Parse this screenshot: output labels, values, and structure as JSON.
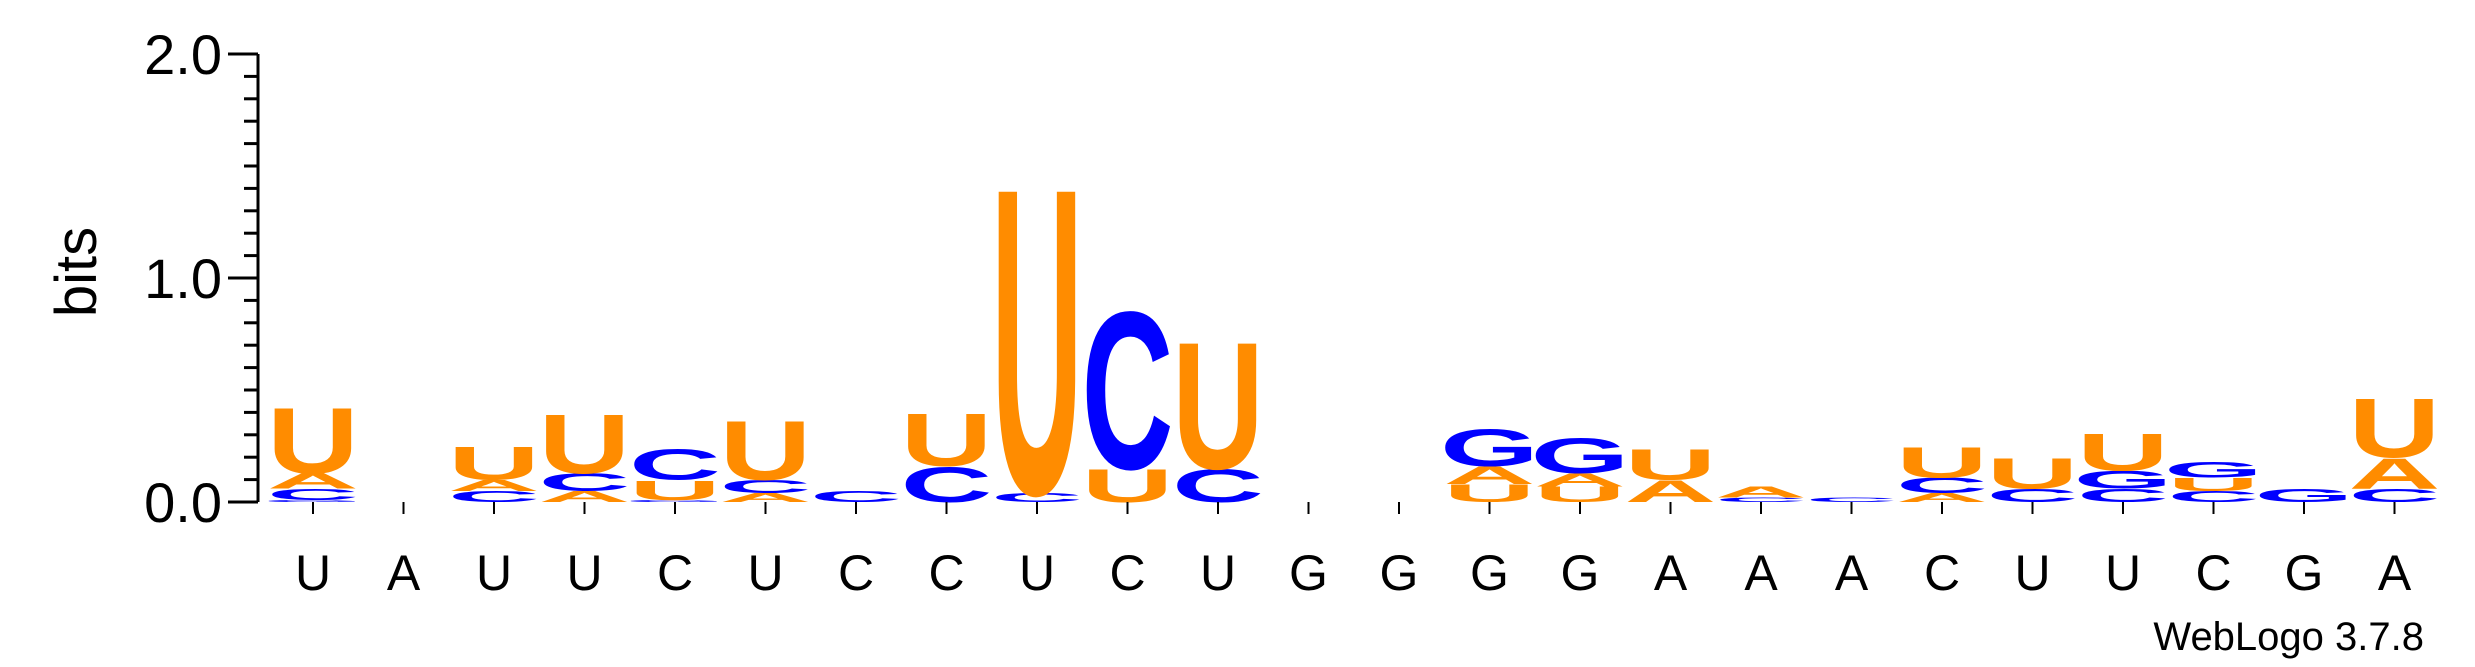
{
  "chart_data": {
    "type": "sequence-logo",
    "ylabel": "bits",
    "ylim": [
      0,
      2
    ],
    "yticks": [
      "0.0",
      "1.0",
      "2.0"
    ],
    "xticklabels": [
      "U",
      "A",
      "U",
      "U",
      "C",
      "U",
      "C",
      "C",
      "U",
      "C",
      "U",
      "G",
      "G",
      "G",
      "G",
      "A",
      "A",
      "A",
      "C",
      "U",
      "U",
      "C",
      "G",
      "A"
    ],
    "footer": "WebLogo 3.7.8",
    "colors": {
      "U": "#ff8c00",
      "A": "#ff8c00",
      "C": "#0000ff",
      "G": "#0000ff"
    },
    "stacks": [
      [
        {
          "l": "G",
          "h": 0.01
        },
        {
          "l": "C",
          "h": 0.05
        },
        {
          "l": "A",
          "h": 0.07
        },
        {
          "l": "U",
          "h": 0.3
        }
      ],
      [],
      [
        {
          "l": "C",
          "h": 0.05
        },
        {
          "l": "A",
          "h": 0.05
        },
        {
          "l": "U",
          "h": 0.15
        }
      ],
      [
        {
          "l": "A",
          "h": 0.05
        },
        {
          "l": "C",
          "h": 0.08
        },
        {
          "l": "U",
          "h": 0.27
        }
      ],
      [
        {
          "l": "G",
          "h": 0.01
        },
        {
          "l": "U",
          "h": 0.09
        },
        {
          "l": "C",
          "h": 0.14
        }
      ],
      [
        {
          "l": "A",
          "h": 0.04
        },
        {
          "l": "C",
          "h": 0.06
        },
        {
          "l": "U",
          "h": 0.27
        }
      ],
      [
        {
          "l": "C",
          "h": 0.05
        }
      ],
      [
        {
          "l": "C",
          "h": 0.16
        },
        {
          "l": "U",
          "h": 0.24
        }
      ],
      [
        {
          "l": "C",
          "h": 0.04
        },
        {
          "l": "U",
          "h": 1.4
        }
      ],
      [
        {
          "l": "U",
          "h": 0.15
        },
        {
          "l": "C",
          "h": 0.72
        }
      ],
      [
        {
          "l": "C",
          "h": 0.15
        },
        {
          "l": "U",
          "h": 0.58
        }
      ],
      [],
      [],
      [
        {
          "l": "U",
          "h": 0.08
        },
        {
          "l": "A",
          "h": 0.08
        },
        {
          "l": "G",
          "h": 0.17
        }
      ],
      [
        {
          "l": "U",
          "h": 0.07
        },
        {
          "l": "A",
          "h": 0.06
        },
        {
          "l": "G",
          "h": 0.16
        }
      ],
      [
        {
          "l": "A",
          "h": 0.1
        },
        {
          "l": "U",
          "h": 0.14
        }
      ],
      [
        {
          "l": "C",
          "h": 0.02
        },
        {
          "l": "A",
          "h": 0.05
        }
      ],
      [
        {
          "l": "C",
          "h": 0.02
        }
      ],
      [
        {
          "l": "A",
          "h": 0.04
        },
        {
          "l": "C",
          "h": 0.07
        },
        {
          "l": "U",
          "h": 0.14
        }
      ],
      [
        {
          "l": "C",
          "h": 0.06
        },
        {
          "l": "U",
          "h": 0.14
        }
      ],
      [
        {
          "l": "C",
          "h": 0.06
        },
        {
          "l": "G",
          "h": 0.08
        },
        {
          "l": "U",
          "h": 0.17
        }
      ],
      [
        {
          "l": "C",
          "h": 0.05
        },
        {
          "l": "U",
          "h": 0.06
        },
        {
          "l": "G",
          "h": 0.07
        }
      ],
      [
        {
          "l": "G",
          "h": 0.06
        }
      ],
      [
        {
          "l": "C",
          "h": 0.06
        },
        {
          "l": "A",
          "h": 0.14
        },
        {
          "l": "U",
          "h": 0.27
        }
      ]
    ]
  }
}
